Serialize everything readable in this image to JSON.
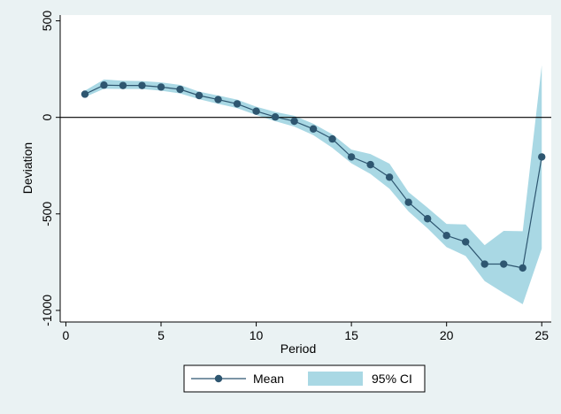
{
  "chart_data": {
    "type": "line",
    "title": "",
    "xlabel": "Period",
    "ylabel": "Deviation",
    "xlim": [
      -0.3,
      25.5
    ],
    "ylim": [
      -1060,
      530
    ],
    "xticks": [
      0,
      5,
      10,
      15,
      20,
      25
    ],
    "yticks": [
      500,
      0,
      -500,
      -1000
    ],
    "grid": false,
    "reference_line_y": 0,
    "legend_position": "bottom",
    "x": [
      1,
      2,
      3,
      4,
      5,
      6,
      7,
      8,
      9,
      10,
      11,
      12,
      13,
      14,
      15,
      16,
      17,
      18,
      19,
      20,
      21,
      22,
      23,
      24,
      25
    ],
    "series": [
      {
        "name": "Mean",
        "kind": "line-marker",
        "color": "#2e5670",
        "values": [
          120,
          167,
          165,
          165,
          157,
          145,
          113,
          92,
          70,
          32,
          2,
          -20,
          -60,
          -112,
          -205,
          -245,
          -310,
          -440,
          -525,
          -612,
          -645,
          -760,
          -760,
          -780,
          -205
        ]
      },
      {
        "name": "95% CI",
        "kind": "band",
        "color": "#a9d8e4",
        "lower": [
          105,
          148,
          147,
          147,
          138,
          124,
          94,
          70,
          48,
          12,
          -20,
          -48,
          -92,
          -158,
          -238,
          -293,
          -370,
          -487,
          -575,
          -672,
          -718,
          -848,
          -910,
          -968,
          -680
        ],
        "upper": [
          138,
          196,
          190,
          188,
          181,
          168,
          133,
          113,
          92,
          55,
          28,
          8,
          -33,
          -88,
          -167,
          -190,
          -240,
          -387,
          -468,
          -552,
          -555,
          -662,
          -588,
          -590,
          270
        ]
      }
    ]
  }
}
